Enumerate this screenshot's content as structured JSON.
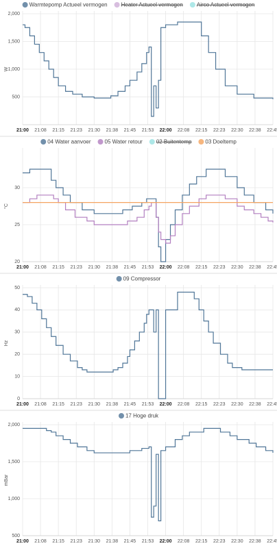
{
  "chart_data": [
    {
      "type": "line",
      "step": true,
      "ylabel": "W",
      "xlim": [
        "21:00",
        "22:45"
      ],
      "xticks": [
        "21:00",
        {
          "value": "21:07:30",
          "label": "21:08"
        },
        "21:15",
        {
          "value": "21:22:30",
          "label": "21:23"
        },
        "21:30",
        {
          "value": "21:37:30",
          "label": "21:38"
        },
        "21:45",
        {
          "value": "21:52:30",
          "label": "21:53"
        },
        "22:00",
        {
          "value": "22:07:30",
          "label": "22:08"
        },
        "22:15",
        {
          "value": "22:22:30",
          "label": "22:23"
        },
        "22:30",
        {
          "value": "22:37:30",
          "label": "22:38"
        },
        "22:45"
      ],
      "ylim": [
        0,
        2000
      ],
      "yticks": [
        {
          "value": 500,
          "label": "500"
        },
        {
          "value": 1000,
          "label": "1,000"
        },
        {
          "value": 1500,
          "label": "1,500"
        },
        {
          "value": 2000,
          "label": "2,000"
        }
      ],
      "grid": true,
      "series": [
        {
          "name": "Warmtepomp Actueel vermogen",
          "color": "#4f7597",
          "x": [
            "21:00",
            "21:01",
            "21:03",
            "21:05",
            "21:07",
            "21:09",
            "21:11",
            "21:13",
            "21:15",
            "21:18",
            "21:21",
            "21:25",
            "21:30",
            "21:34",
            "21:37",
            "21:40",
            "21:43",
            "21:45",
            "21:48",
            "21:50",
            "21:52",
            "21:53",
            "21:54",
            "21:55",
            "21:56",
            "21:57",
            "21:58",
            "22:00",
            "22:05",
            "22:12",
            "22:15",
            "22:18",
            "22:21",
            "22:25",
            "22:30",
            "22:37",
            "22:45"
          ],
          "values": [
            1800,
            1750,
            1600,
            1450,
            1300,
            1150,
            1000,
            850,
            700,
            600,
            550,
            500,
            480,
            480,
            520,
            600,
            700,
            800,
            950,
            1100,
            1300,
            1400,
            150,
            700,
            300,
            800,
            1750,
            1800,
            1850,
            1850,
            1600,
            1300,
            1000,
            700,
            550,
            480,
            460
          ]
        },
        {
          "name": "Heater Actueel vermogen",
          "color": "#b27fc0",
          "hidden": true
        },
        {
          "name": "Airco Actueel vermogen",
          "color": "#5fd3d3",
          "hidden": true
        }
      ]
    },
    {
      "type": "line",
      "step": true,
      "ylabel": "°C",
      "xlim": [
        "21:00",
        "22:45"
      ],
      "xticks": [
        "21:00",
        {
          "value": "21:07:30",
          "label": "21:08"
        },
        "21:15",
        {
          "value": "21:22:30",
          "label": "21:23"
        },
        "21:30",
        {
          "value": "21:37:30",
          "label": "21:38"
        },
        "21:45",
        {
          "value": "21:52:30",
          "label": "21:53"
        },
        "22:00",
        {
          "value": "22:07:30",
          "label": "22:08"
        },
        "22:15",
        {
          "value": "22:22:30",
          "label": "22:23"
        },
        "22:30",
        {
          "value": "22:37:30",
          "label": "22:38"
        },
        "22:45"
      ],
      "ylim": [
        20,
        35
      ],
      "yticks": [
        20,
        25,
        30
      ],
      "grid": true,
      "series": [
        {
          "name": "04 Water aanvoer",
          "color": "#4f7597",
          "x": [
            "21:00",
            "21:03",
            "21:10",
            "21:12",
            "21:14",
            "21:17",
            "21:20",
            "21:25",
            "21:30",
            "21:38",
            "21:42",
            "21:46",
            "21:50",
            "21:52",
            "21:55",
            "21:56",
            "21:57",
            "21:58",
            "22:00",
            "22:02",
            "22:04",
            "22:07",
            "22:10",
            "22:13",
            "22:17",
            "22:20",
            "22:25",
            "22:30",
            "22:33",
            "22:37",
            "22:42",
            "22:45"
          ],
          "values": [
            32,
            32.5,
            32.5,
            31,
            30,
            29,
            28,
            27,
            26.5,
            26.5,
            27,
            27.5,
            28,
            28.5,
            28.5,
            26,
            22,
            20,
            23,
            25,
            27,
            29,
            30.5,
            31.5,
            32.5,
            32.5,
            31.5,
            30,
            29,
            28,
            27,
            26.5
          ]
        },
        {
          "name": "05 Water retour",
          "color": "#b27fc0",
          "x": [
            "21:00",
            "21:03",
            "21:06",
            "21:11",
            "21:13",
            "21:15",
            "21:18",
            "21:22",
            "21:27",
            "21:30",
            "21:42",
            "21:44",
            "21:48",
            "21:51",
            "21:53",
            "21:54",
            "21:56",
            "21:57",
            "21:58",
            "22:00",
            "22:02",
            "22:04",
            "22:07",
            "22:10",
            "22:14",
            "22:17",
            "22:22",
            "22:25",
            "22:30",
            "22:33",
            "22:37",
            "22:40",
            "22:43",
            "22:45"
          ],
          "values": [
            28,
            28.5,
            29,
            29,
            28.5,
            28,
            27,
            26,
            25.5,
            25,
            25,
            25.5,
            26,
            27,
            27.5,
            28,
            26,
            24,
            23,
            22.5,
            23.5,
            25,
            26.5,
            27.5,
            28.5,
            29,
            29,
            28.5,
            27.5,
            27,
            26.5,
            26,
            25.5,
            25.3
          ]
        },
        {
          "name": "02 Buitentemp",
          "color": "#5fd3d3",
          "hidden": true
        },
        {
          "name": "03 Doeltemp",
          "color": "#f4a460",
          "x": [
            "21:00",
            "22:45"
          ],
          "values": [
            28,
            28
          ]
        }
      ]
    },
    {
      "type": "line",
      "step": true,
      "ylabel": "Hz",
      "xlim": [
        "21:00",
        "22:45"
      ],
      "xticks": [
        "21:00",
        {
          "value": "21:07:30",
          "label": "21:08"
        },
        "21:15",
        {
          "value": "21:22:30",
          "label": "21:23"
        },
        "21:30",
        {
          "value": "21:37:30",
          "label": "21:38"
        },
        "21:45",
        {
          "value": "21:52:30",
          "label": "21:53"
        },
        "22:00",
        {
          "value": "22:07:30",
          "label": "22:08"
        },
        "22:15",
        {
          "value": "22:22:30",
          "label": "22:23"
        },
        "22:30",
        {
          "value": "22:37:30",
          "label": "22:38"
        },
        "22:45"
      ],
      "ylim": [
        0,
        50
      ],
      "yticks": [
        0,
        10,
        20,
        30,
        40,
        50
      ],
      "grid": true,
      "series": [
        {
          "name": "09 Compressor",
          "color": "#4f7597",
          "x": [
            "21:00",
            "21:02",
            "21:04",
            "21:06",
            "21:08",
            "21:10",
            "21:12",
            "21:14",
            "21:17",
            "21:20",
            "21:23",
            "21:25",
            "21:27",
            "21:37",
            "21:38",
            "21:40",
            "21:42",
            "21:44",
            "21:45",
            "21:47",
            "21:49",
            "21:51",
            "21:52",
            "21:53",
            "21:55",
            "21:56",
            "21:57",
            "21:58",
            "22:00",
            "22:05",
            "22:12",
            "22:14",
            "22:16",
            "22:18",
            "22:20",
            "22:23",
            "22:26",
            "22:28",
            "22:32",
            "22:45"
          ],
          "values": [
            47,
            46,
            43,
            40,
            36,
            32,
            28,
            24,
            20,
            17,
            14,
            13,
            12,
            12,
            13,
            14,
            16,
            19,
            22,
            26,
            30,
            34,
            38,
            40,
            30,
            40,
            0,
            0,
            40,
            48,
            45,
            40,
            35,
            30,
            25,
            20,
            16,
            14,
            13,
            13
          ]
        }
      ]
    },
    {
      "type": "line",
      "step": true,
      "ylabel": "mBar",
      "xlim": [
        "21:00",
        "22:45"
      ],
      "xticks": [
        "21:00",
        {
          "value": "21:07:30",
          "label": "21:08"
        },
        "21:15",
        {
          "value": "21:22:30",
          "label": "21:23"
        },
        "21:30",
        {
          "value": "21:37:30",
          "label": "21:38"
        },
        "21:45",
        {
          "value": "21:52:30",
          "label": "21:53"
        },
        "22:00",
        {
          "value": "22:07:30",
          "label": "22:08"
        },
        "22:15",
        {
          "value": "22:22:30",
          "label": "22:23"
        },
        "22:30",
        {
          "value": "22:37:30",
          "label": "22:38"
        },
        "22:45"
      ],
      "ylim": [
        500,
        2000
      ],
      "yticks": [
        {
          "value": 500,
          "label": "500"
        },
        {
          "value": 1000,
          "label": "1,000"
        },
        {
          "value": 1500,
          "label": "1,500"
        },
        {
          "value": 2000,
          "label": "2,000"
        }
      ],
      "grid": true,
      "series": [
        {
          "name": "17 Hoge druk",
          "color": "#4f7597",
          "x": [
            "21:00",
            "21:08",
            "21:10",
            "21:12",
            "21:14",
            "21:17",
            "21:20",
            "21:23",
            "21:27",
            "21:30",
            "21:42",
            "21:45",
            "21:50",
            "21:53",
            "21:54",
            "21:55",
            "21:56",
            "21:57",
            "21:58",
            "22:00",
            "22:04",
            "22:07",
            "22:10",
            "22:16",
            "22:20",
            "22:23",
            "22:27",
            "22:30",
            "22:35",
            "22:38",
            "22:42",
            "22:45"
          ],
          "values": [
            1950,
            1950,
            1920,
            1900,
            1850,
            1800,
            1750,
            1700,
            1650,
            1620,
            1620,
            1650,
            1680,
            1700,
            750,
            900,
            1600,
            700,
            1650,
            1700,
            1800,
            1850,
            1900,
            1950,
            1950,
            1900,
            1850,
            1800,
            1750,
            1700,
            1650,
            1620
          ]
        }
      ]
    }
  ]
}
